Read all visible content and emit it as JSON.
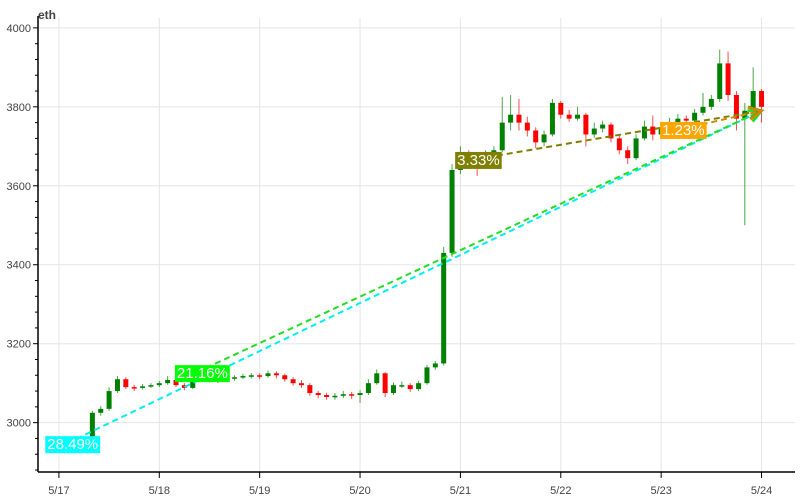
{
  "chart_data": {
    "type": "candlestick",
    "title": "eth",
    "ylim": [
      2875,
      4025
    ],
    "xlim": [
      "5/16 19:00",
      "5/24 08:00"
    ],
    "grid": true,
    "y_ticks": [
      3000,
      3200,
      3400,
      3600,
      3800,
      4000
    ],
    "x_ticks": [
      "5/17",
      "5/18",
      "5/19",
      "5/20",
      "5/21",
      "5/22",
      "5/23",
      "5/24"
    ],
    "colors": {
      "up": "#008000",
      "down": "#ff0000"
    },
    "candles": [
      [
        "5/16 22:00",
        2930,
        2945,
        2925,
        2935
      ],
      [
        "5/17 00:00",
        2935,
        2952,
        2930,
        2945
      ],
      [
        "5/17 02:00",
        2945,
        2955,
        2938,
        2948
      ],
      [
        "5/17 04:00",
        2948,
        2958,
        2942,
        2950
      ],
      [
        "5/17 06:00",
        2950,
        2960,
        2944,
        2952
      ],
      [
        "5/17 08:00",
        2952,
        3030,
        2948,
        3025
      ],
      [
        "5/17 10:00",
        3025,
        3042,
        3018,
        3035
      ],
      [
        "5/17 12:00",
        3035,
        3090,
        3030,
        3080
      ],
      [
        "5/17 14:00",
        3080,
        3118,
        3075,
        3110
      ],
      [
        "5/17 16:00",
        3110,
        3115,
        3085,
        3090
      ],
      [
        "5/17 18:00",
        3090,
        3096,
        3080,
        3088
      ],
      [
        "5/17 20:00",
        3088,
        3098,
        3084,
        3092
      ],
      [
        "5/17 22:00",
        3092,
        3100,
        3088,
        3095
      ],
      [
        "5/18 00:00",
        3095,
        3106,
        3090,
        3100
      ],
      [
        "5/18 02:00",
        3100,
        3118,
        3096,
        3108
      ],
      [
        "5/18 04:00",
        3108,
        3112,
        3090,
        3095
      ],
      [
        "5/18 06:00",
        3095,
        3100,
        3082,
        3088
      ],
      [
        "5/18 08:00",
        3088,
        3118,
        3085,
        3110
      ],
      [
        "5/18 10:00",
        3110,
        3140,
        3106,
        3130
      ],
      [
        "5/18 12:00",
        3130,
        3134,
        3102,
        3110
      ],
      [
        "5/18 14:00",
        3110,
        3116,
        3100,
        3108
      ],
      [
        "5/18 16:00",
        3108,
        3118,
        3104,
        3112
      ],
      [
        "5/18 18:00",
        3112,
        3120,
        3106,
        3115
      ],
      [
        "5/18 20:00",
        3115,
        3124,
        3110,
        3118
      ],
      [
        "5/18 22:00",
        3118,
        3126,
        3112,
        3120
      ],
      [
        "5/19 00:00",
        3120,
        3125,
        3110,
        3118
      ],
      [
        "5/19 02:00",
        3118,
        3132,
        3114,
        3125
      ],
      [
        "5/19 04:00",
        3125,
        3130,
        3112,
        3120
      ],
      [
        "5/19 06:00",
        3120,
        3124,
        3104,
        3110
      ],
      [
        "5/19 08:00",
        3110,
        3115,
        3094,
        3100
      ],
      [
        "5/19 10:00",
        3100,
        3108,
        3088,
        3095
      ],
      [
        "5/19 12:00",
        3095,
        3100,
        3068,
        3075
      ],
      [
        "5/19 14:00",
        3075,
        3080,
        3062,
        3070
      ],
      [
        "5/19 16:00",
        3070,
        3076,
        3058,
        3065
      ],
      [
        "5/19 18:00",
        3065,
        3075,
        3058,
        3068
      ],
      [
        "5/19 20:00",
        3068,
        3080,
        3062,
        3072
      ],
      [
        "5/19 22:00",
        3072,
        3078,
        3060,
        3070
      ],
      [
        "5/20 00:00",
        3070,
        3082,
        3050,
        3075
      ],
      [
        "5/20 02:00",
        3075,
        3110,
        3070,
        3100
      ],
      [
        "5/20 04:00",
        3100,
        3135,
        3096,
        3125
      ],
      [
        "5/20 06:00",
        3125,
        3128,
        3065,
        3075
      ],
      [
        "5/20 08:00",
        3075,
        3102,
        3070,
        3095
      ],
      [
        "5/20 10:00",
        3095,
        3104,
        3088,
        3095
      ],
      [
        "5/20 12:00",
        3095,
        3100,
        3078,
        3085
      ],
      [
        "5/20 14:00",
        3085,
        3106,
        3080,
        3100
      ],
      [
        "5/20 16:00",
        3100,
        3146,
        3096,
        3140
      ],
      [
        "5/20 18:00",
        3140,
        3156,
        3134,
        3150
      ],
      [
        "5/20 20:00",
        3150,
        3445,
        3145,
        3430
      ],
      [
        "5/20 22:00",
        3430,
        3655,
        3420,
        3640
      ],
      [
        "5/21 00:00",
        3640,
        3700,
        3630,
        3680
      ],
      [
        "5/21 02:00",
        3680,
        3690,
        3650,
        3670
      ],
      [
        "5/21 04:00",
        3670,
        3685,
        3625,
        3665
      ],
      [
        "5/21 06:00",
        3665,
        3690,
        3655,
        3680
      ],
      [
        "5/21 08:00",
        3680,
        3700,
        3670,
        3690
      ],
      [
        "5/21 10:00",
        3690,
        3825,
        3685,
        3760
      ],
      [
        "5/21 12:00",
        3760,
        3830,
        3740,
        3780
      ],
      [
        "5/21 14:00",
        3780,
        3820,
        3740,
        3760
      ],
      [
        "5/21 16:00",
        3760,
        3775,
        3725,
        3740
      ],
      [
        "5/21 18:00",
        3740,
        3748,
        3695,
        3710
      ],
      [
        "5/21 20:00",
        3710,
        3740,
        3700,
        3730
      ],
      [
        "5/21 22:00",
        3730,
        3820,
        3725,
        3810
      ],
      [
        "5/22 00:00",
        3810,
        3815,
        3770,
        3780
      ],
      [
        "5/22 02:00",
        3780,
        3792,
        3762,
        3770
      ],
      [
        "5/22 04:00",
        3770,
        3800,
        3765,
        3780
      ],
      [
        "5/22 06:00",
        3780,
        3785,
        3700,
        3730
      ],
      [
        "5/22 08:00",
        3730,
        3760,
        3722,
        3745
      ],
      [
        "5/22 10:00",
        3745,
        3765,
        3735,
        3755
      ],
      [
        "5/22 12:00",
        3755,
        3760,
        3710,
        3720
      ],
      [
        "5/22 14:00",
        3720,
        3728,
        3680,
        3690
      ],
      [
        "5/22 16:00",
        3690,
        3700,
        3655,
        3670
      ],
      [
        "5/22 18:00",
        3670,
        3730,
        3665,
        3720
      ],
      [
        "5/22 20:00",
        3720,
        3765,
        3715,
        3750
      ],
      [
        "5/22 22:00",
        3750,
        3778,
        3715,
        3730
      ],
      [
        "5/23 00:00",
        3730,
        3760,
        3720,
        3745
      ],
      [
        "5/23 02:00",
        3745,
        3772,
        3738,
        3760
      ],
      [
        "5/23 04:00",
        3760,
        3782,
        3752,
        3770
      ],
      [
        "5/23 06:00",
        3770,
        3778,
        3755,
        3765
      ],
      [
        "5/23 08:00",
        3765,
        3795,
        3760,
        3785
      ],
      [
        "5/23 10:00",
        3785,
        3835,
        3778,
        3800
      ],
      [
        "5/23 12:00",
        3800,
        3830,
        3792,
        3820
      ],
      [
        "5/23 14:00",
        3820,
        3945,
        3812,
        3910
      ],
      [
        "5/23 16:00",
        3910,
        3940,
        3815,
        3830
      ],
      [
        "5/23 18:00",
        3830,
        3840,
        3740,
        3770
      ],
      [
        "5/23 20:00",
        3770,
        3810,
        3500,
        3790
      ],
      [
        "5/23 22:00",
        3790,
        3900,
        3780,
        3840
      ],
      [
        "5/24 00:00",
        3840,
        3845,
        3760,
        3800
      ]
    ],
    "annotations": [
      {
        "label": "28.49%",
        "from": [
          "5/17 02:00",
          2948
        ],
        "to": [
          "5/24 00:00",
          3790
        ],
        "color": "#00eeee",
        "bg": "#00ffff"
      },
      {
        "label": "21.16%",
        "from": [
          "5/18 09:00",
          3128
        ],
        "to": [
          "5/24 00:00",
          3790
        ],
        "color": "#22dd22",
        "bg": "#00ff00"
      },
      {
        "label": "3.33%",
        "from": [
          "5/21 04:00",
          3668
        ],
        "to": [
          "5/24 00:00",
          3790
        ],
        "color": "#808000",
        "bg": "#808000"
      },
      {
        "label": "1.23%",
        "from": [
          "5/23 05:00",
          3744
        ],
        "to": [
          "5/24 00:00",
          3790
        ],
        "color": "#cc8a00",
        "bg": "#ffa500"
      }
    ]
  }
}
